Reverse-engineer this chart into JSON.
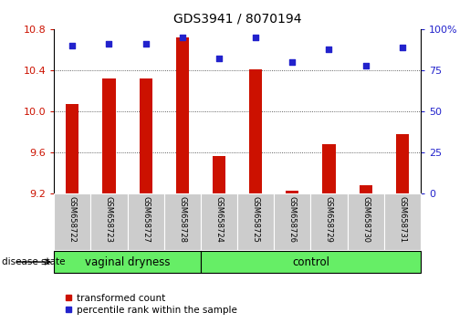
{
  "title": "GDS3941 / 8070194",
  "samples": [
    "GSM658722",
    "GSM658723",
    "GSM658727",
    "GSM658728",
    "GSM658724",
    "GSM658725",
    "GSM658726",
    "GSM658729",
    "GSM658730",
    "GSM658731"
  ],
  "red_values": [
    10.07,
    10.32,
    10.32,
    10.72,
    9.57,
    10.41,
    9.23,
    9.68,
    9.28,
    9.78
  ],
  "blue_values": [
    90,
    91,
    91,
    95,
    82,
    95,
    80,
    88,
    78,
    89
  ],
  "ylim_left": [
    9.2,
    10.8
  ],
  "ylim_right": [
    0,
    100
  ],
  "yticks_left": [
    9.2,
    9.6,
    10.0,
    10.4,
    10.8
  ],
  "yticks_right": [
    0,
    25,
    50,
    75,
    100
  ],
  "grid_yticks": [
    9.6,
    10.0,
    10.4
  ],
  "groups": [
    {
      "label": "vaginal dryness",
      "start": 0,
      "end": 4
    },
    {
      "label": "control",
      "start": 4,
      "end": 10
    }
  ],
  "group_color": "#66ee66",
  "bar_color": "#cc1100",
  "dot_color": "#2222cc",
  "background_color": "#ffffff",
  "grid_color": "#333333",
  "left_tick_color": "#cc1100",
  "right_tick_color": "#2222cc",
  "disease_state_label": "disease state",
  "legend_red": "transformed count",
  "legend_blue": "percentile rank within the sample",
  "x_tick_bg": "#cccccc",
  "bar_width": 0.35
}
